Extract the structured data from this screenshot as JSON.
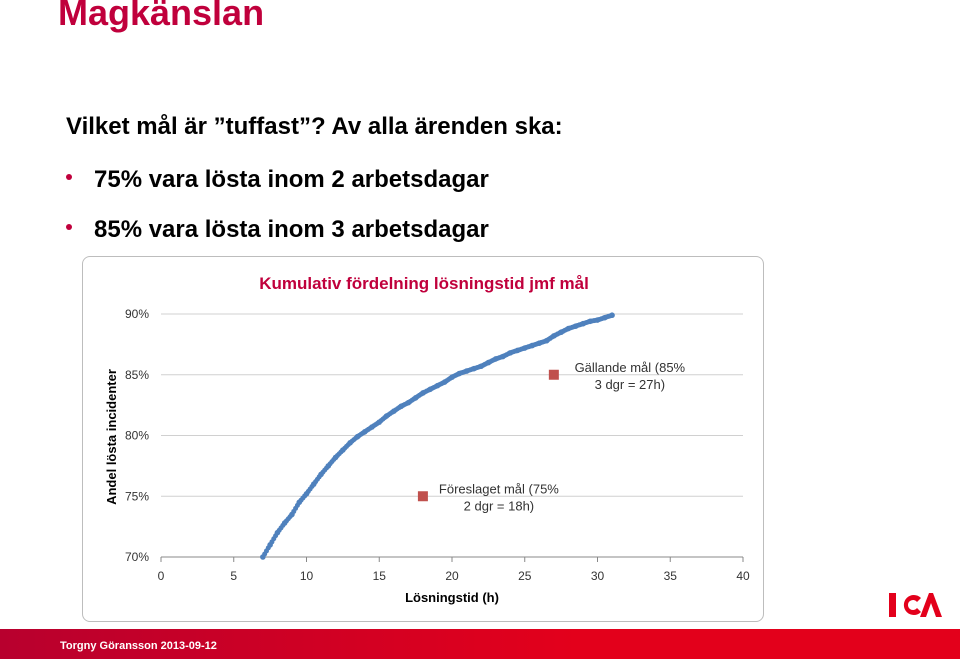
{
  "slide": {
    "title": "Magkänslan",
    "intro": "Vilket mål är ”tuffast”? Av alla ärenden ska:",
    "bullets": [
      "75% vara lösta inom 2 arbetsdagar",
      "85% vara lösta inom 3 arbetsdagar"
    ],
    "footer": "Torgny Göransson 2013-09-12",
    "logo": "ICA",
    "colors": {
      "accent": "#c0003c",
      "footer": "#e3001b",
      "series": "#4f81bd",
      "marker": "#c0504d"
    }
  },
  "chart_data": {
    "type": "scatter",
    "title": "Kumulativ fördelning lösningstid  jmf mål",
    "xlabel": "Lösningstid (h)",
    "ylabel": "Andel lösta incidenter",
    "xlim": [
      0,
      40
    ],
    "ylim": [
      70,
      90
    ],
    "xticks": [
      "0",
      "5",
      "10",
      "15",
      "20",
      "25",
      "30",
      "35",
      "40"
    ],
    "yticks": [
      "70%",
      "75%",
      "80%",
      "85%",
      "90%"
    ],
    "grid": true,
    "series": [
      {
        "values": [
          [
            7.0,
            70.0
          ],
          [
            7.5,
            71.0
          ],
          [
            8.0,
            72.0
          ],
          [
            8.5,
            72.8
          ],
          [
            9.0,
            73.5
          ],
          [
            9.5,
            74.5
          ],
          [
            10.0,
            75.2
          ],
          [
            10.5,
            76.0
          ],
          [
            11.0,
            76.8
          ],
          [
            11.5,
            77.5
          ],
          [
            12.0,
            78.2
          ],
          [
            12.5,
            78.8
          ],
          [
            13.0,
            79.4
          ],
          [
            13.5,
            79.9
          ],
          [
            14.0,
            80.3
          ],
          [
            14.5,
            80.7
          ],
          [
            15.0,
            81.1
          ],
          [
            15.5,
            81.6
          ],
          [
            16.0,
            82.0
          ],
          [
            16.5,
            82.4
          ],
          [
            17.0,
            82.7
          ],
          [
            17.5,
            83.1
          ],
          [
            18.0,
            83.5
          ],
          [
            18.5,
            83.8
          ],
          [
            19.0,
            84.1
          ],
          [
            19.5,
            84.4
          ],
          [
            20.0,
            84.8
          ],
          [
            20.5,
            85.1
          ],
          [
            21.0,
            85.3
          ],
          [
            21.5,
            85.5
          ],
          [
            22.0,
            85.7
          ],
          [
            22.5,
            86.0
          ],
          [
            23.0,
            86.3
          ],
          [
            23.5,
            86.5
          ],
          [
            24.0,
            86.8
          ],
          [
            24.5,
            87.0
          ],
          [
            25.0,
            87.2
          ],
          [
            25.5,
            87.4
          ],
          [
            26.0,
            87.6
          ],
          [
            26.5,
            87.8
          ],
          [
            27.0,
            88.2
          ],
          [
            27.5,
            88.5
          ],
          [
            28.0,
            88.8
          ],
          [
            28.5,
            89.0
          ],
          [
            29.0,
            89.2
          ],
          [
            29.5,
            89.4
          ],
          [
            30.0,
            89.5
          ],
          [
            30.5,
            89.7
          ],
          [
            31.0,
            89.9
          ]
        ]
      }
    ],
    "markers": [
      {
        "x": 18,
        "y": 75,
        "label_lines": [
          "Föreslaget mål (75%",
          "2 dgr = 18h)"
        ]
      },
      {
        "x": 27,
        "y": 85,
        "label_lines": [
          "Gällande mål (85%",
          "3 dgr = 27h)"
        ]
      }
    ]
  }
}
